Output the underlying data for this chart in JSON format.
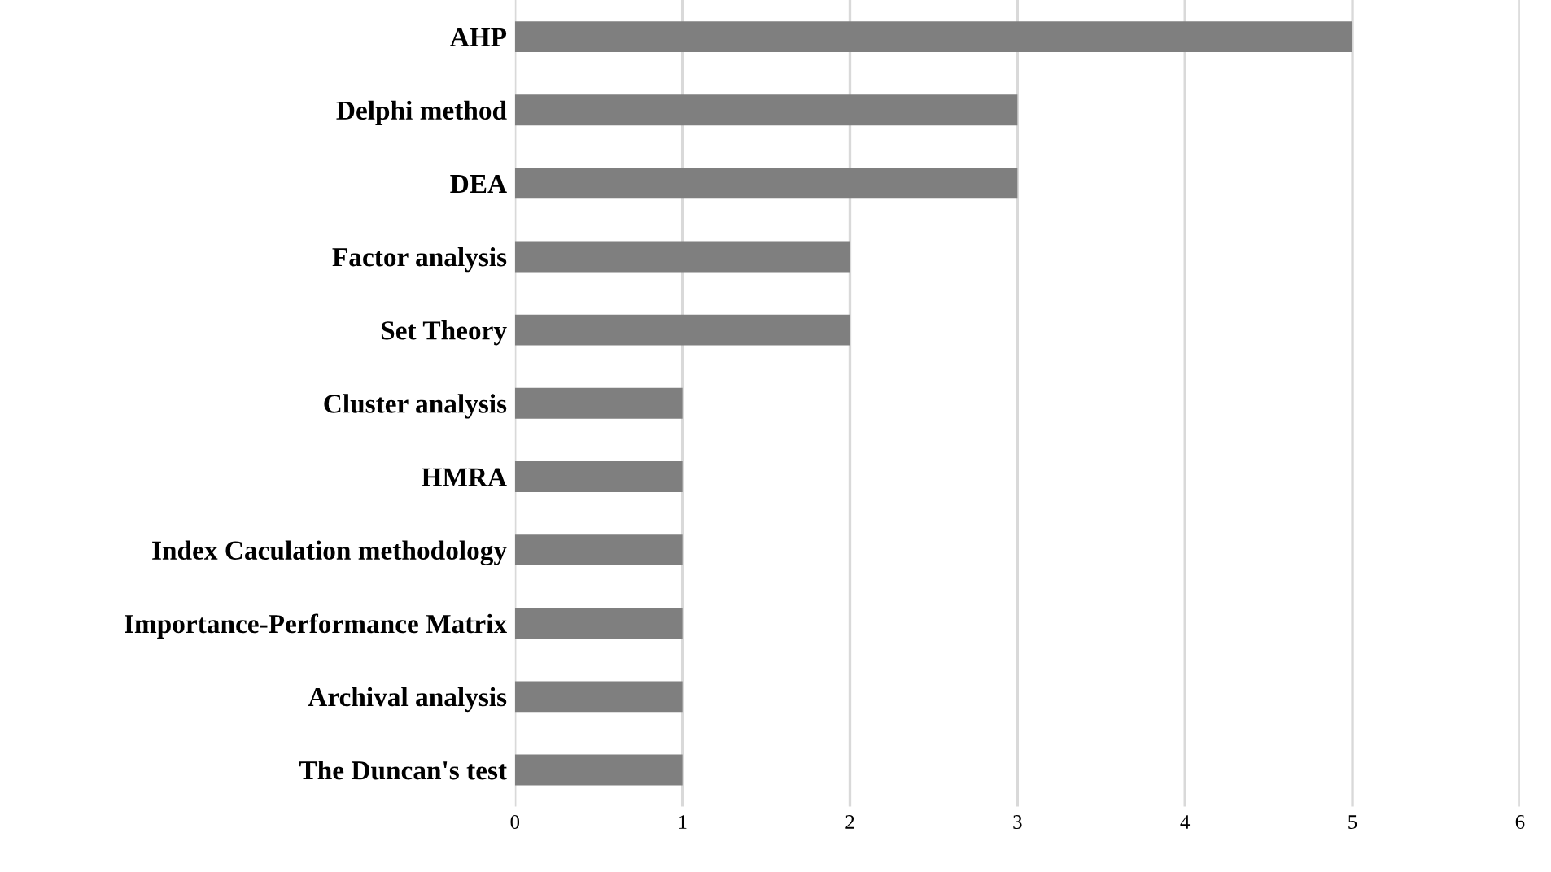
{
  "chart_data": {
    "type": "bar",
    "orientation": "horizontal",
    "categories": [
      "AHP",
      "Delphi method",
      "DEA",
      "Factor analysis",
      "Set Theory",
      "Cluster analysis",
      "HMRA",
      "Index Caculation methodology",
      "Importance-Performance Matrix",
      "Archival analysis",
      "The Duncan's test"
    ],
    "values": [
      5,
      3,
      3,
      2,
      2,
      1,
      1,
      1,
      1,
      1,
      1
    ],
    "color": "#7f7f7f",
    "xlim": [
      0,
      6
    ],
    "xticks": [
      0,
      1,
      2,
      3,
      4,
      5,
      6
    ],
    "grid": "x"
  }
}
